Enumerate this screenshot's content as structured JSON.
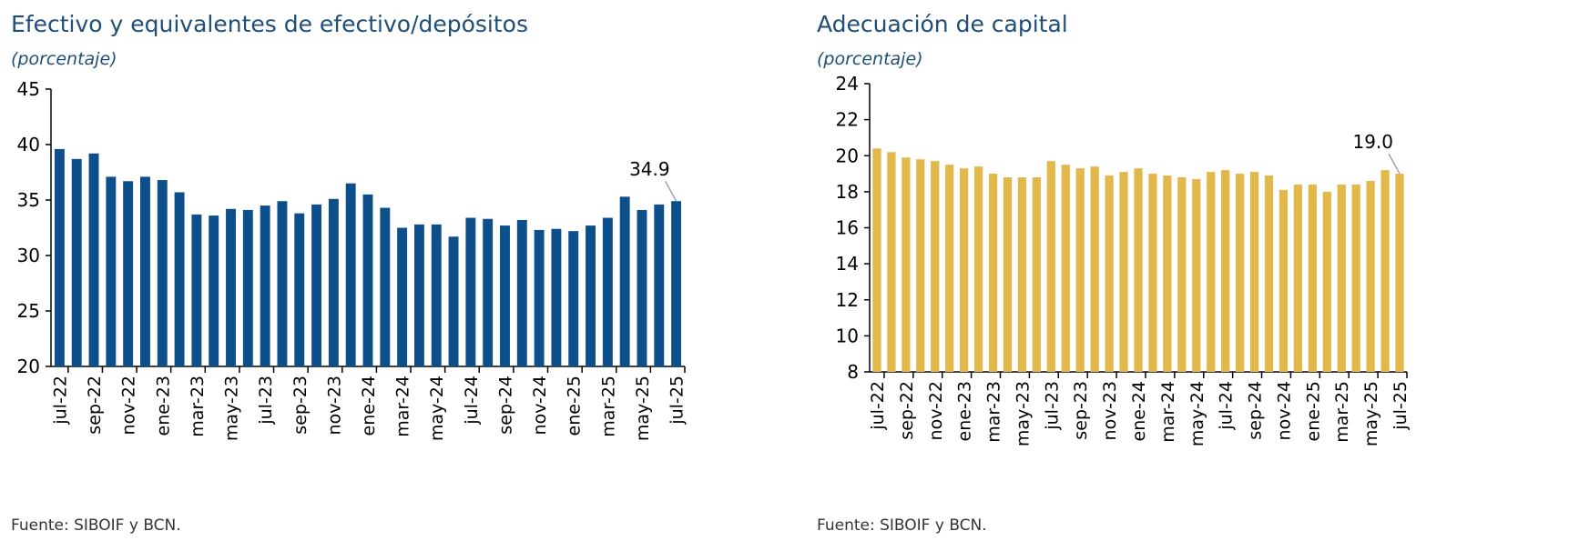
{
  "source_note": "Fuente: SIBOIF y BCN.",
  "colors": {
    "title": "#1f4e79",
    "left_bars": "#0d4f8b",
    "right_bars": "#e2b84a",
    "axis": "#000000",
    "leader": "#999999"
  },
  "chart_data": [
    {
      "type": "bar",
      "title": "Efectivo y equivalentes de efectivo/depósitos",
      "subtitle": "(porcentaje)",
      "xlabel": "",
      "ylabel": "",
      "ylim": [
        20,
        45
      ],
      "yticks": [
        20,
        25,
        30,
        35,
        40,
        45
      ],
      "grid": false,
      "legend": "none",
      "categories": [
        "jul-22",
        "ago-22",
        "sep-22",
        "oct-22",
        "nov-22",
        "dic-22",
        "ene-23",
        "feb-23",
        "mar-23",
        "abr-23",
        "may-23",
        "jun-23",
        "jul-23",
        "ago-23",
        "sep-23",
        "oct-23",
        "nov-23",
        "dic-23",
        "ene-24",
        "feb-24",
        "mar-24",
        "abr-24",
        "may-24",
        "jun-24",
        "jul-24",
        "ago-24",
        "sep-24",
        "oct-24",
        "nov-24",
        "dic-24",
        "ene-25",
        "feb-25",
        "mar-25",
        "abr-25",
        "may-25",
        "jun-25",
        "jul-25"
      ],
      "tick_labels": [
        "jul-22",
        "sep-22",
        "nov-22",
        "ene-23",
        "mar-23",
        "may-23",
        "jul-23",
        "sep-23",
        "nov-23",
        "ene-24",
        "mar-24",
        "may-24",
        "jul-24",
        "sep-24",
        "nov-24",
        "ene-25",
        "mar-25",
        "may-25",
        "jul-25"
      ],
      "values": [
        39.6,
        38.7,
        39.2,
        37.1,
        36.7,
        37.1,
        36.8,
        35.7,
        33.7,
        33.6,
        34.2,
        34.1,
        34.5,
        34.9,
        33.8,
        34.6,
        35.1,
        36.5,
        35.5,
        34.3,
        32.5,
        32.8,
        32.8,
        31.7,
        33.4,
        33.3,
        32.7,
        33.2,
        32.3,
        32.4,
        32.2,
        32.7,
        33.4,
        35.3,
        34.1,
        34.6,
        34.9
      ],
      "annotation": {
        "label": "34.9",
        "category": "jul-25"
      }
    },
    {
      "type": "bar",
      "title": "Adecuación de capital",
      "subtitle": "(porcentaje)",
      "xlabel": "",
      "ylabel": "",
      "ylim": [
        8,
        24
      ],
      "yticks": [
        8,
        10,
        12,
        14,
        16,
        18,
        20,
        22,
        24
      ],
      "grid": false,
      "legend": "none",
      "categories": [
        "jul-22",
        "ago-22",
        "sep-22",
        "oct-22",
        "nov-22",
        "dic-22",
        "ene-23",
        "feb-23",
        "mar-23",
        "abr-23",
        "may-23",
        "jun-23",
        "jul-23",
        "ago-23",
        "sep-23",
        "oct-23",
        "nov-23",
        "dic-23",
        "ene-24",
        "feb-24",
        "mar-24",
        "abr-24",
        "may-24",
        "jun-24",
        "jul-24",
        "ago-24",
        "sep-24",
        "oct-24",
        "nov-24",
        "dic-24",
        "ene-25",
        "feb-25",
        "mar-25",
        "abr-25",
        "may-25",
        "jun-25",
        "jul-25"
      ],
      "tick_labels": [
        "jul-22",
        "sep-22",
        "nov-22",
        "ene-23",
        "mar-23",
        "may-23",
        "jul-23",
        "sep-23",
        "nov-23",
        "ene-24",
        "mar-24",
        "may-24",
        "jul-24",
        "sep-24",
        "nov-24",
        "ene-25",
        "mar-25",
        "may-25",
        "jul-25"
      ],
      "values": [
        20.4,
        20.2,
        19.9,
        19.8,
        19.7,
        19.5,
        19.3,
        19.4,
        19.0,
        18.8,
        18.8,
        18.8,
        19.7,
        19.5,
        19.3,
        19.4,
        18.9,
        19.1,
        19.3,
        19.0,
        18.9,
        18.8,
        18.7,
        19.1,
        19.2,
        19.0,
        19.1,
        18.9,
        18.1,
        18.4,
        18.4,
        18.0,
        18.4,
        18.4,
        18.6,
        19.2,
        19.0
      ],
      "annotation": {
        "label": "19.0",
        "category": "jul-25"
      }
    }
  ]
}
